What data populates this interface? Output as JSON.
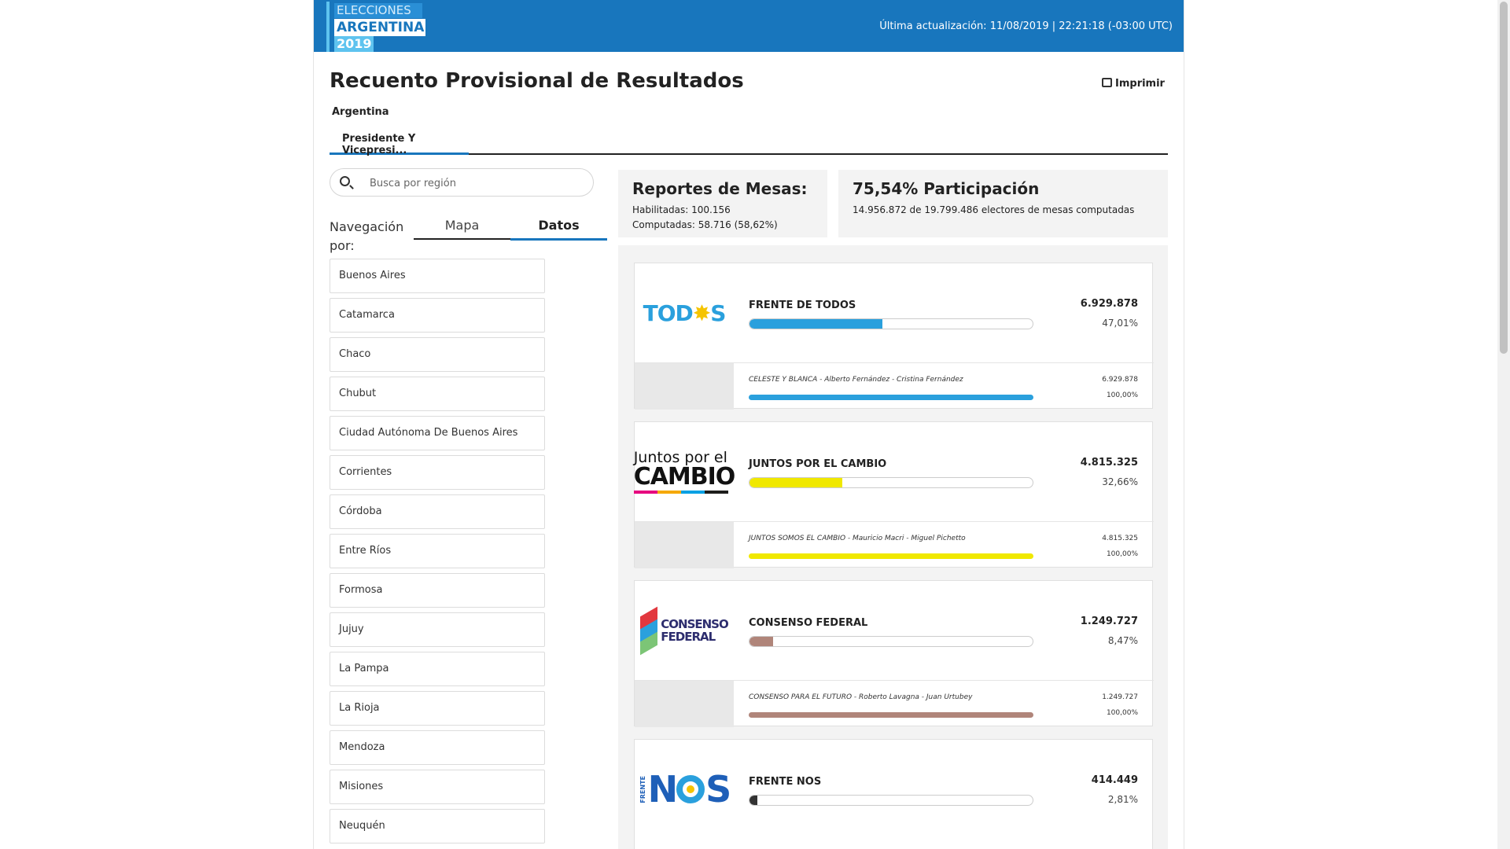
{
  "header": {
    "logo_line1": "ELECCIONES",
    "logo_line2": "ARGENTINA",
    "logo_line3": "2019",
    "last_update": "Última actualización: 11/08/2019 | 22:21:18 (-03:00 UTC)",
    "brand_color": "#1876bd"
  },
  "page": {
    "title": "Recuento Provisional de Resultados",
    "print_label": "Imprimir",
    "breadcrumb": "Argentina",
    "tab_label": "Presidente Y Vicepresi..."
  },
  "search": {
    "placeholder": "Busca por región"
  },
  "navigation": {
    "label": "Navegación por:",
    "tabs": [
      {
        "label": "Mapa",
        "active": false
      },
      {
        "label": "Datos",
        "active": true
      }
    ]
  },
  "regions": [
    "Buenos Aires",
    "Catamarca",
    "Chaco",
    "Chubut",
    "Ciudad Autónoma De Buenos Aires",
    "Corrientes",
    "Córdoba",
    "Entre Ríos",
    "Formosa",
    "Jujuy",
    "La Pampa",
    "La Rioja",
    "Mendoza",
    "Misiones",
    "Neuquén"
  ],
  "stats": {
    "mesas": {
      "title": "Reportes de Mesas:",
      "habilitadas": "Habilitadas: 100.156",
      "computadas": "Computadas: 58.716 (58,62%)"
    },
    "participacion": {
      "title": "75,54% Participación",
      "detail": "14.956.872 de 19.799.486 electores de mesas computadas"
    }
  },
  "parties": [
    {
      "name": "FRENTE DE TODOS",
      "votes": "6.929.878",
      "percent": "47,01%",
      "fraction": 0.4701,
      "color": "#2aa0dd",
      "logo_text": {
        "a": "TOD",
        "b": "✸",
        "c": "S"
      },
      "list": {
        "name": "CELESTE Y BLANCA - Alberto Fernández - Cristina Fernández",
        "votes": "6.929.878",
        "percent": "100,00%"
      }
    },
    {
      "name": "JUNTOS POR EL CAMBIO",
      "votes": "4.815.325",
      "percent": "32,66%",
      "fraction": 0.3266,
      "color": "#f0e800",
      "logo_text": {
        "a": "Juntos por el",
        "b": "CAMBIO"
      },
      "list": {
        "name": "JUNTOS SOMOS EL CAMBIO - Mauricio Macri - Miguel Pichetto",
        "votes": "4.815.325",
        "percent": "100,00%"
      }
    },
    {
      "name": "CONSENSO FEDERAL",
      "votes": "1.249.727",
      "percent": "8,47%",
      "fraction": 0.0847,
      "color": "#b0857a",
      "logo_text": {
        "a": "CONSENSO",
        "b": "FEDERAL"
      },
      "list": {
        "name": "CONSENSO PARA EL FUTURO - Roberto Lavagna - Juan Urtubey",
        "votes": "1.249.727",
        "percent": "100,00%"
      }
    },
    {
      "name": "FRENTE NOS",
      "votes": "414.449",
      "percent": "2,81%",
      "fraction": 0.0281,
      "color": "#333333",
      "logo_text": {
        "a": "FRENTE",
        "b": "N",
        "c": "S"
      }
    }
  ]
}
